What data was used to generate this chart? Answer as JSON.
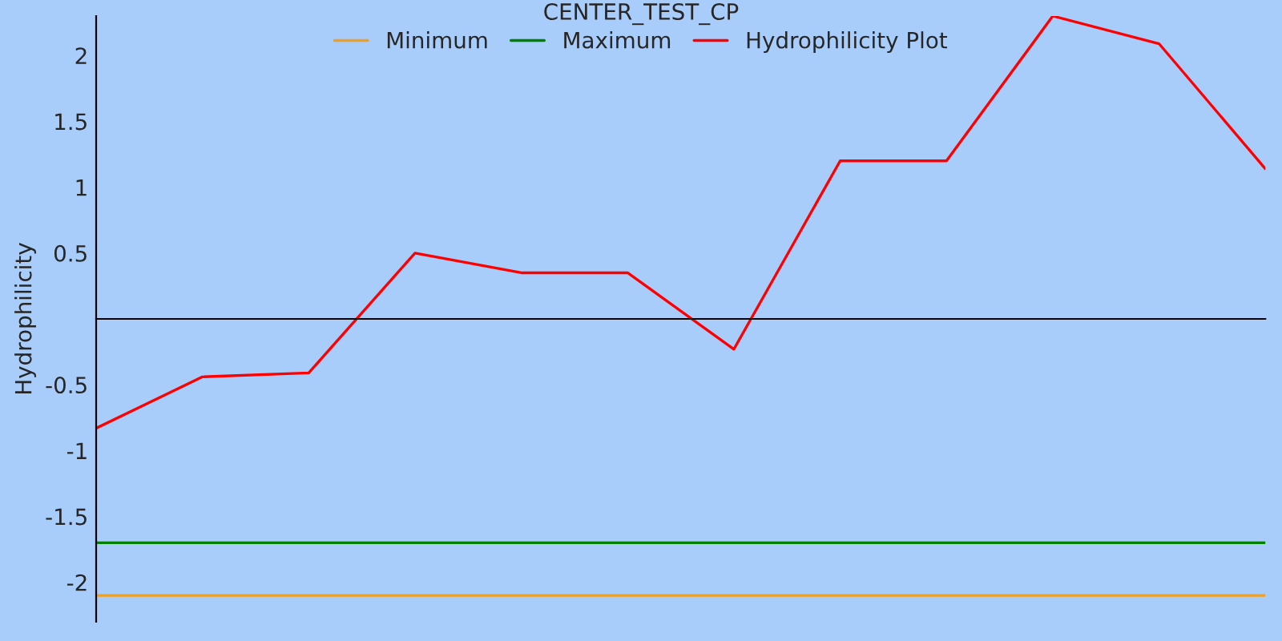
{
  "chart_data": {
    "type": "line",
    "title": "CENTER_TEST_CP",
    "ylabel": "Hydrophilicity",
    "categories": [
      null,
      null,
      null,
      null,
      null,
      null,
      null,
      null,
      null,
      null,
      null,
      null
    ],
    "series": [
      {
        "name": "Minimum",
        "color": "#f0a020",
        "values": [
          -2.1,
          -2.1,
          -2.1,
          -2.1,
          -2.1,
          -2.1,
          -2.1,
          -2.1,
          -2.1,
          -2.1,
          -2.1,
          -2.1
        ]
      },
      {
        "name": "Maximum",
        "color": "#008000",
        "values": [
          -1.7,
          -1.7,
          -1.7,
          -1.7,
          -1.7,
          -1.7,
          -1.7,
          -1.7,
          -1.7,
          -1.7,
          -1.7,
          -1.7
        ]
      },
      {
        "name": "Hydrophilicity Plot",
        "color": "#ff0000",
        "values": [
          -0.83,
          -0.44,
          -0.41,
          0.5,
          0.35,
          0.35,
          -0.23,
          1.2,
          1.2,
          2.3,
          2.09,
          1.14
        ]
      }
    ],
    "ylim": [
      -2.3,
      2.3
    ],
    "yticks": [
      -2,
      -1.5,
      -1,
      -0.5,
      0.5,
      1,
      1.5,
      2
    ],
    "legend": "top",
    "grid": false,
    "marker": "none",
    "line_style": "solid"
  }
}
